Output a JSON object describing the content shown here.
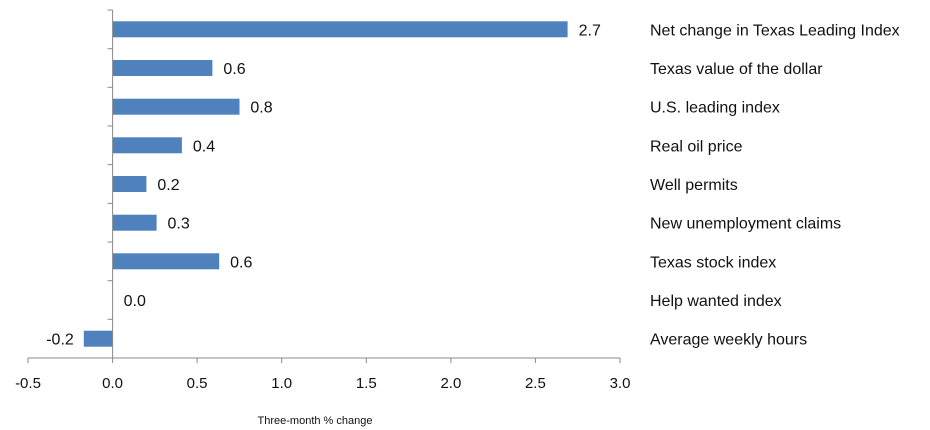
{
  "chart_data": {
    "type": "bar",
    "orientation": "horizontal",
    "categories": [
      "Net change in Texas Leading Index",
      "Texas value of the dollar",
      "U.S. leading index",
      "Real oil price",
      "Well permits",
      "New unemployment claims",
      "Texas stock index",
      "Help wanted index",
      "Average weekly hours"
    ],
    "values": [
      2.7,
      0.6,
      0.8,
      0.4,
      0.2,
      0.3,
      0.6,
      0.0,
      -0.2
    ],
    "value_labels": [
      "2.7",
      "0.6",
      "0.8",
      "0.4",
      "0.2",
      "0.3",
      "0.6",
      "0.0",
      "-0.2"
    ],
    "bar_lengths": [
      2.69,
      0.59,
      0.75,
      0.41,
      0.2,
      0.26,
      0.63,
      0.0,
      -0.17
    ],
    "xlabel": "Three-month % change",
    "xlim": [
      -0.5,
      3.0
    ],
    "xticks": [
      "-0.5",
      "0.0",
      "0.5",
      "1.0",
      "1.5",
      "2.0",
      "2.5",
      "3.0"
    ],
    "tick_values": [
      -0.5,
      0.0,
      0.5,
      1.0,
      1.5,
      2.0,
      2.5,
      3.0
    ],
    "bar_color": "#4f81bd",
    "grid": false,
    "legend": "none"
  }
}
